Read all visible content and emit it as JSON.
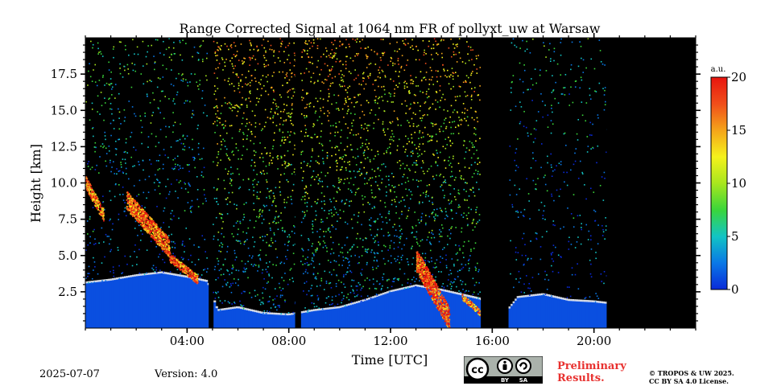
{
  "chart_data": {
    "type": "heatmap",
    "title": "Range Corrected Signal at 1064 nm FR of pollyxt_uw at Warsaw",
    "xlabel": "Time [UTC]",
    "ylabel": "Height [km]",
    "xlim": [
      0,
      24
    ],
    "ylim": [
      0,
      20
    ],
    "x_ticks": [
      {
        "value": 4,
        "label": "04:00"
      },
      {
        "value": 8,
        "label": "08:00"
      },
      {
        "value": 12,
        "label": "12:00"
      },
      {
        "value": 16,
        "label": "16:00"
      },
      {
        "value": 20,
        "label": "20:00"
      }
    ],
    "y_ticks": [
      {
        "value": 2.5,
        "label": "2.5"
      },
      {
        "value": 5.0,
        "label": "5.0"
      },
      {
        "value": 7.5,
        "label": "7.5"
      },
      {
        "value": 10.0,
        "label": "10.0"
      },
      {
        "value": 12.5,
        "label": "12.5"
      },
      {
        "value": 15.0,
        "label": "15.0"
      },
      {
        "value": 17.5,
        "label": "17.5"
      }
    ],
    "colorbar": {
      "unit": "a.u.",
      "range": [
        0,
        20
      ],
      "ticks": [
        {
          "value": 0,
          "label": "0"
        },
        {
          "value": 5,
          "label": "5"
        },
        {
          "value": 10,
          "label": "10"
        },
        {
          "value": 15,
          "label": "15"
        },
        {
          "value": 20,
          "label": "20"
        }
      ],
      "colors": [
        "#0a2ad9",
        "#0a78e6",
        "#12c4c4",
        "#3ad63a",
        "#a8e61e",
        "#f5f21c",
        "#f5a41a",
        "#f04e1a",
        "#e8150f"
      ]
    },
    "background_color": "#000000",
    "no_data_intervals": [
      [
        4.85,
        5.0
      ],
      [
        8.25,
        8.45
      ],
      [
        15.55,
        16.6
      ],
      [
        20.5,
        24.0
      ]
    ],
    "boundary_layer_top_km": [
      [
        0.0,
        3.1
      ],
      [
        1.0,
        3.3
      ],
      [
        2.0,
        3.6
      ],
      [
        3.0,
        3.8
      ],
      [
        4.0,
        3.5
      ],
      [
        4.8,
        3.2
      ],
      [
        5.2,
        1.2
      ],
      [
        6.0,
        1.4
      ],
      [
        7.0,
        1.0
      ],
      [
        8.0,
        0.9
      ],
      [
        9.0,
        1.2
      ],
      [
        10.0,
        1.4
      ],
      [
        11.0,
        1.9
      ],
      [
        12.0,
        2.5
      ],
      [
        13.0,
        2.9
      ],
      [
        14.0,
        2.6
      ],
      [
        15.0,
        2.2
      ],
      [
        15.5,
        2.0
      ],
      [
        16.6,
        1.2
      ],
      [
        17.0,
        2.1
      ],
      [
        18.0,
        2.3
      ],
      [
        19.0,
        1.9
      ],
      [
        20.0,
        1.8
      ],
      [
        20.5,
        1.7
      ]
    ],
    "high_signal_layers": [
      {
        "t_start": 0.0,
        "t_end": 0.7,
        "h_bottom": 8.0,
        "h_top": 10.5,
        "value": 16
      },
      {
        "t_start": 1.6,
        "t_end": 3.3,
        "h_bottom": 5.8,
        "h_top": 9.5,
        "value": 17
      },
      {
        "t_start": 3.3,
        "t_end": 4.4,
        "h_bottom": 3.5,
        "h_top": 5.2,
        "value": 17
      },
      {
        "t_start": 13.0,
        "t_end": 14.3,
        "h_bottom": 1.0,
        "h_top": 5.5,
        "value": 18
      },
      {
        "t_start": 14.8,
        "t_end": 15.5,
        "h_bottom": 1.2,
        "h_top": 2.4,
        "value": 16
      }
    ],
    "noisy_intervals": [
      {
        "t_start": 4.9,
        "t_end": 15.5,
        "value": 8
      },
      {
        "t_start": 0.0,
        "t_end": 4.8,
        "value": 4
      },
      {
        "t_start": 16.6,
        "t_end": 20.5,
        "value": 3
      }
    ]
  },
  "footer": {
    "date": "2025-07-07",
    "version": "Version: 4.0",
    "preliminary_line1": "Preliminary",
    "preliminary_line2": "Results.",
    "copyright_line1": "© TROPOS & UW 2025.",
    "copyright_line2": "CC BY SA 4.0 License.",
    "cc_labels": [
      "BY",
      "SA"
    ]
  }
}
